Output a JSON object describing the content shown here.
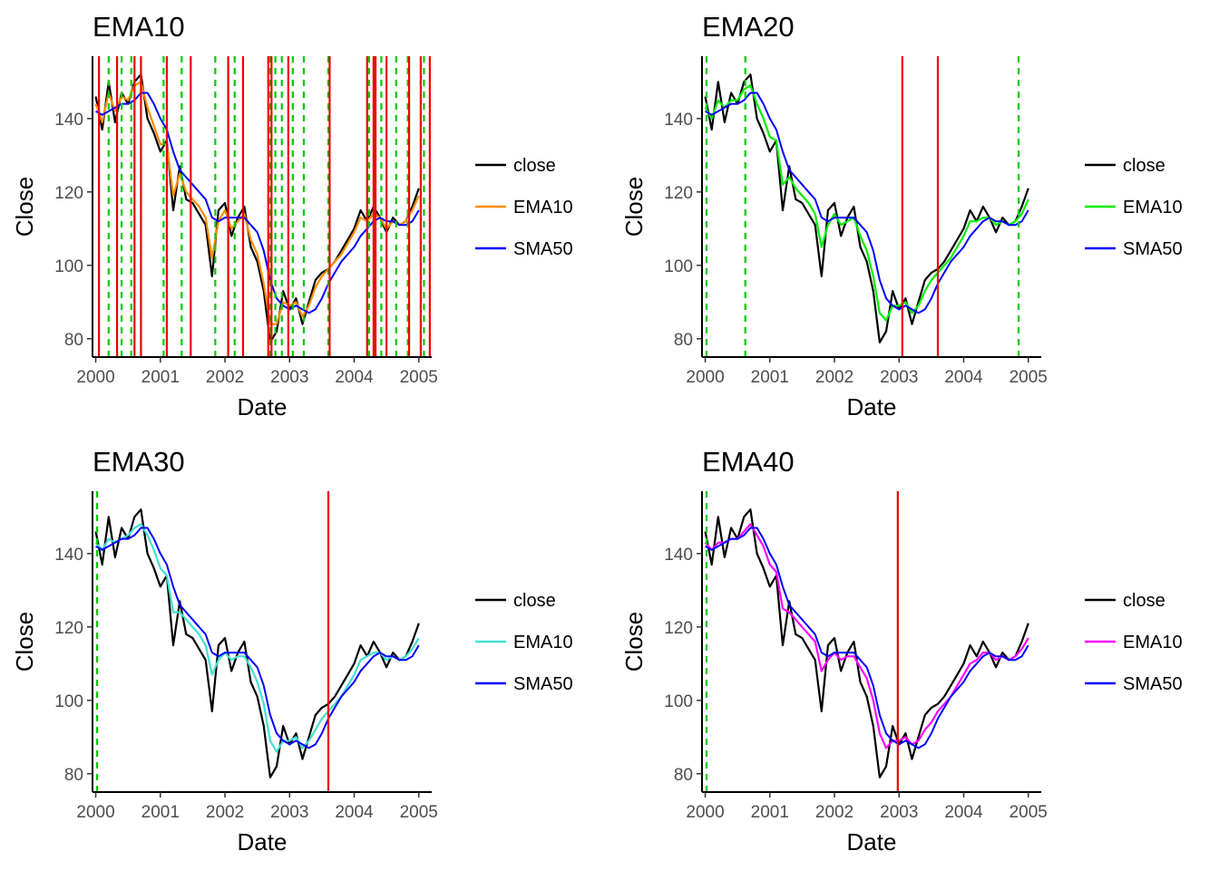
{
  "chart_data": [
    {
      "type": "line",
      "title": "EMA10",
      "xlabel": "Date",
      "ylabel": "Close",
      "xlim": [
        1999.95,
        2005.2
      ],
      "ylim": [
        75,
        157
      ],
      "x_ticks": [
        2000,
        2001,
        2002,
        2003,
        2004,
        2005
      ],
      "x_tick_labels": [
        "2000",
        "2001",
        "2002",
        "2003",
        "2004",
        "2005"
      ],
      "y_ticks": [
        80,
        100,
        120,
        140
      ],
      "y_tick_labels": [
        "80",
        "100",
        "120",
        "140"
      ],
      "grid": false,
      "legend_position": "right",
      "legend": [
        "close",
        "EMA10",
        "SMA50"
      ],
      "series_colors": {
        "close": "#000000",
        "ema": "#ff8c00",
        "sma": "#0000ff"
      },
      "sell_signals": [
        2000.05,
        2000.33,
        2000.6,
        2000.7,
        2001.1,
        2001.47,
        2002.05,
        2002.28,
        2002.67,
        2002.72,
        2002.98,
        2003.62,
        2004.2,
        2004.3,
        2004.33,
        2004.5,
        2004.85,
        2005.03,
        2005.17
      ],
      "buy_signals": [
        2000.2,
        2000.4,
        2000.55,
        2001.05,
        2001.33,
        2001.85,
        2002.15,
        2002.7,
        2002.78,
        2002.88,
        2003.05,
        2003.22,
        2003.6,
        2004.23,
        2004.42,
        2004.65,
        2004.83,
        2005.08
      ]
    },
    {
      "type": "line",
      "title": "EMA20",
      "xlabel": "Date",
      "ylabel": "Close",
      "xlim": [
        1999.95,
        2005.2
      ],
      "ylim": [
        75,
        157
      ],
      "x_ticks": [
        2000,
        2001,
        2002,
        2003,
        2004,
        2005
      ],
      "x_tick_labels": [
        "2000",
        "2001",
        "2002",
        "2003",
        "2004",
        "2005"
      ],
      "y_ticks": [
        80,
        100,
        120,
        140
      ],
      "y_tick_labels": [
        "80",
        "100",
        "120",
        "140"
      ],
      "grid": false,
      "legend_position": "right",
      "legend": [
        "close",
        "EMA10",
        "SMA50"
      ],
      "series_colors": {
        "close": "#000000",
        "ema": "#00ee00",
        "sma": "#0000ff"
      },
      "sell_signals": [
        2003.05,
        2003.6
      ],
      "buy_signals": [
        2000.02,
        2000.62,
        2004.85
      ]
    },
    {
      "type": "line",
      "title": "EMA30",
      "xlabel": "Date",
      "ylabel": "Close",
      "xlim": [
        1999.95,
        2005.2
      ],
      "ylim": [
        75,
        157
      ],
      "x_ticks": [
        2000,
        2001,
        2002,
        2003,
        2004,
        2005
      ],
      "x_tick_labels": [
        "2000",
        "2001",
        "2002",
        "2003",
        "2004",
        "2005"
      ],
      "y_ticks": [
        80,
        100,
        120,
        140
      ],
      "y_tick_labels": [
        "80",
        "100",
        "120",
        "140"
      ],
      "grid": false,
      "legend_position": "right",
      "legend": [
        "close",
        "EMA10",
        "SMA50"
      ],
      "series_colors": {
        "close": "#000000",
        "ema": "#40e0d0",
        "sma": "#0000ff"
      },
      "sell_signals": [
        2003.6
      ],
      "buy_signals": [
        2000.02
      ]
    },
    {
      "type": "line",
      "title": "EMA40",
      "xlabel": "Date",
      "ylabel": "Close",
      "xlim": [
        1999.95,
        2005.2
      ],
      "ylim": [
        75,
        157
      ],
      "x_ticks": [
        2000,
        2001,
        2002,
        2003,
        2004,
        2005
      ],
      "x_tick_labels": [
        "2000",
        "2001",
        "2002",
        "2003",
        "2004",
        "2005"
      ],
      "y_ticks": [
        80,
        100,
        120,
        140
      ],
      "y_tick_labels": [
        "80",
        "100",
        "120",
        "140"
      ],
      "grid": false,
      "legend_position": "right",
      "legend": [
        "close",
        "EMA10",
        "SMA50"
      ],
      "series_colors": {
        "close": "#000000",
        "ema": "#ff00ff",
        "sma": "#0000ff"
      },
      "sell_signals": [
        2002.98
      ],
      "buy_signals": [
        2000.02
      ]
    }
  ],
  "price_series": {
    "x": [
      2000.0,
      2000.1,
      2000.2,
      2000.3,
      2000.4,
      2000.5,
      2000.6,
      2000.7,
      2000.8,
      2000.9,
      2001.0,
      2001.1,
      2001.2,
      2001.3,
      2001.4,
      2001.5,
      2001.6,
      2001.7,
      2001.8,
      2001.9,
      2002.0,
      2002.1,
      2002.2,
      2002.3,
      2002.4,
      2002.5,
      2002.6,
      2002.7,
      2002.8,
      2002.9,
      2003.0,
      2003.1,
      2003.2,
      2003.3,
      2003.4,
      2003.5,
      2003.6,
      2003.7,
      2003.8,
      2003.9,
      2004.0,
      2004.1,
      2004.2,
      2004.3,
      2004.4,
      2004.5,
      2004.6,
      2004.7,
      2004.8,
      2004.9,
      2005.0
    ],
    "close": [
      146,
      137,
      150,
      139,
      147,
      144,
      150,
      152,
      140,
      136,
      131,
      134,
      115,
      127,
      118,
      117,
      114,
      111,
      97,
      115,
      117,
      108,
      113,
      116,
      105,
      101,
      93,
      79,
      82,
      93,
      88,
      91,
      84,
      90,
      96,
      98,
      99,
      101,
      104,
      107,
      110,
      115,
      112,
      116,
      113,
      109,
      113,
      111,
      112,
      116,
      121
    ],
    "ema10": [
      144,
      139,
      147,
      142,
      146,
      145,
      149,
      150,
      143,
      138,
      133,
      133,
      119,
      125,
      120,
      118,
      116,
      113,
      102,
      112,
      115,
      110,
      112,
      114,
      107,
      103,
      95,
      84,
      84,
      90,
      89,
      90,
      86,
      89,
      94,
      97,
      99,
      101,
      103,
      106,
      109,
      113,
      112,
      114,
      113,
      110,
      112,
      111,
      112,
      115,
      119
    ],
    "ema20": [
      143,
      140,
      145,
      143,
      145,
      145,
      148,
      149,
      144,
      140,
      135,
      134,
      122,
      124,
      121,
      119,
      117,
      114,
      105,
      111,
      114,
      111,
      112,
      113,
      108,
      104,
      97,
      87,
      85,
      89,
      89,
      90,
      87,
      89,
      93,
      96,
      98,
      100,
      102,
      105,
      108,
      112,
      112,
      113,
      113,
      111,
      112,
      111,
      112,
      114,
      118
    ],
    "ema30": [
      143,
      141,
      144,
      143,
      144,
      145,
      147,
      148,
      145,
      141,
      136,
      134,
      124,
      124,
      122,
      120,
      118,
      115,
      107,
      111,
      113,
      111,
      112,
      112,
      109,
      105,
      99,
      89,
      86,
      89,
      89,
      90,
      87,
      89,
      92,
      95,
      97,
      99,
      101,
      104,
      107,
      111,
      112,
      113,
      113,
      111,
      112,
      111,
      112,
      114,
      117
    ],
    "ema40": [
      143,
      141,
      143,
      143,
      144,
      144,
      146,
      148,
      145,
      142,
      137,
      135,
      125,
      124,
      122,
      120,
      118,
      116,
      108,
      111,
      113,
      111,
      112,
      112,
      109,
      106,
      100,
      91,
      87,
      89,
      89,
      90,
      88,
      89,
      92,
      94,
      97,
      99,
      101,
      104,
      107,
      110,
      111,
      113,
      113,
      111,
      112,
      111,
      112,
      114,
      117
    ],
    "sma50": [
      142,
      141,
      142,
      143,
      144,
      144,
      145,
      147,
      147,
      144,
      140,
      137,
      131,
      126,
      124,
      122,
      120,
      118,
      113,
      112,
      113,
      113,
      113,
      113,
      111,
      109,
      104,
      96,
      91,
      89,
      88,
      89,
      88,
      87,
      88,
      91,
      95,
      98,
      101,
      103,
      105,
      108,
      110,
      112,
      113,
      112,
      112,
      111,
      111,
      112,
      115
    ]
  }
}
